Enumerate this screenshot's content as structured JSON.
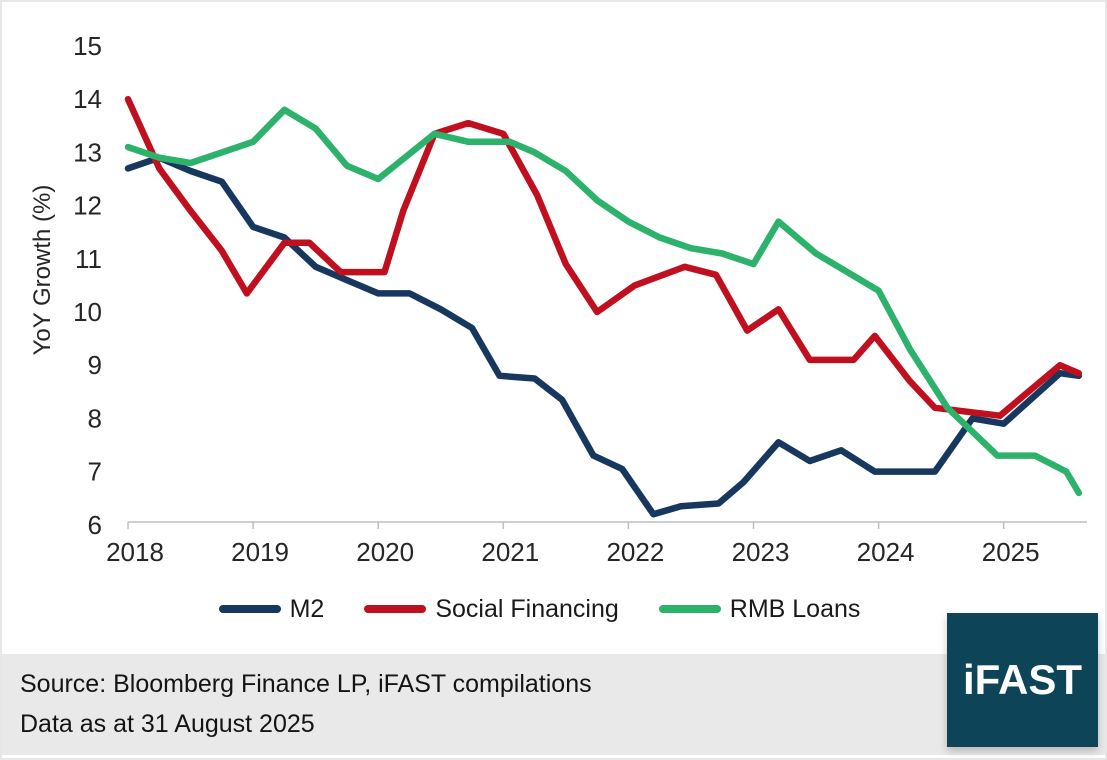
{
  "chart_data": {
    "type": "line",
    "title": "",
    "ylabel": "YoY Growth (%)",
    "ylim": [
      6,
      15
    ],
    "yticks": [
      "6",
      "7",
      "8",
      "9",
      "10",
      "11",
      "12",
      "13",
      "14",
      "15"
    ],
    "xticks": [
      "2018",
      "2019",
      "2020",
      "2021",
      "2022",
      "2023",
      "2024",
      "2025"
    ],
    "xlim": [
      2018,
      2025.66
    ],
    "grid": false,
    "legend_position": "bottom-center",
    "axis_color": "#BFBFBF",
    "tick_label_color": "#262626",
    "series": [
      {
        "name": "M2",
        "color": "#17375E",
        "points": [
          [
            2018.0,
            12.7
          ],
          [
            2018.25,
            12.9
          ],
          [
            2018.5,
            12.65
          ],
          [
            2018.75,
            12.45
          ],
          [
            2019.0,
            11.6
          ],
          [
            2019.25,
            11.4
          ],
          [
            2019.5,
            10.85
          ],
          [
            2019.75,
            10.6
          ],
          [
            2020.0,
            10.35
          ],
          [
            2020.25,
            10.35
          ],
          [
            2020.5,
            10.05
          ],
          [
            2020.75,
            9.7
          ],
          [
            2020.97,
            8.8
          ],
          [
            2021.25,
            8.75
          ],
          [
            2021.47,
            8.35
          ],
          [
            2021.72,
            7.3
          ],
          [
            2021.95,
            7.05
          ],
          [
            2022.2,
            6.2
          ],
          [
            2022.42,
            6.35
          ],
          [
            2022.72,
            6.4
          ],
          [
            2022.92,
            6.8
          ],
          [
            2023.2,
            7.55
          ],
          [
            2023.45,
            7.2
          ],
          [
            2023.7,
            7.4
          ],
          [
            2023.97,
            7.0
          ],
          [
            2024.45,
            7.0
          ],
          [
            2024.75,
            8.0
          ],
          [
            2025.0,
            7.9
          ],
          [
            2025.45,
            8.85
          ],
          [
            2025.6,
            8.8
          ]
        ]
      },
      {
        "name": "Social Financing",
        "color": "#C00F1E",
        "points": [
          [
            2018.0,
            14.0
          ],
          [
            2018.25,
            12.7
          ],
          [
            2018.5,
            11.9
          ],
          [
            2018.75,
            11.15
          ],
          [
            2018.95,
            10.35
          ],
          [
            2019.25,
            11.3
          ],
          [
            2019.45,
            11.3
          ],
          [
            2019.7,
            10.75
          ],
          [
            2020.05,
            10.75
          ],
          [
            2020.2,
            11.9
          ],
          [
            2020.45,
            13.35
          ],
          [
            2020.72,
            13.55
          ],
          [
            2021.0,
            13.35
          ],
          [
            2021.27,
            12.2
          ],
          [
            2021.5,
            10.9
          ],
          [
            2021.75,
            10.0
          ],
          [
            2022.05,
            10.5
          ],
          [
            2022.45,
            10.85
          ],
          [
            2022.7,
            10.7
          ],
          [
            2022.95,
            9.65
          ],
          [
            2023.2,
            10.05
          ],
          [
            2023.45,
            9.1
          ],
          [
            2023.8,
            9.1
          ],
          [
            2023.97,
            9.55
          ],
          [
            2024.25,
            8.7
          ],
          [
            2024.45,
            8.2
          ],
          [
            2024.97,
            8.05
          ],
          [
            2025.45,
            9.0
          ],
          [
            2025.6,
            8.85
          ]
        ]
      },
      {
        "name": "RMB Loans",
        "color": "#2DB26B",
        "points": [
          [
            2018.0,
            13.1
          ],
          [
            2018.25,
            12.9
          ],
          [
            2018.5,
            12.8
          ],
          [
            2018.75,
            13.0
          ],
          [
            2019.0,
            13.2
          ],
          [
            2019.25,
            13.8
          ],
          [
            2019.5,
            13.45
          ],
          [
            2019.75,
            12.75
          ],
          [
            2020.0,
            12.5
          ],
          [
            2020.45,
            13.35
          ],
          [
            2020.72,
            13.2
          ],
          [
            2021.05,
            13.2
          ],
          [
            2021.25,
            13.0
          ],
          [
            2021.5,
            12.65
          ],
          [
            2021.75,
            12.1
          ],
          [
            2022.0,
            11.7
          ],
          [
            2022.25,
            11.4
          ],
          [
            2022.5,
            11.2
          ],
          [
            2022.75,
            11.1
          ],
          [
            2023.0,
            10.9
          ],
          [
            2023.2,
            11.7
          ],
          [
            2023.5,
            11.1
          ],
          [
            2023.75,
            10.75
          ],
          [
            2024.0,
            10.4
          ],
          [
            2024.25,
            9.3
          ],
          [
            2024.55,
            8.2
          ],
          [
            2024.75,
            7.75
          ],
          [
            2024.95,
            7.3
          ],
          [
            2025.25,
            7.3
          ],
          [
            2025.5,
            7.0
          ],
          [
            2025.6,
            6.6
          ]
        ]
      }
    ]
  },
  "footer": {
    "source_line": "Source: Bloomberg Finance LP, iFAST compilations",
    "date_line": "Data as at 31 August 2025",
    "background": "#E9E9E9",
    "text_color": "#141414"
  },
  "logo": {
    "text": "iFAST",
    "background": "#0E4457",
    "text_color": "#FFFFFF"
  }
}
